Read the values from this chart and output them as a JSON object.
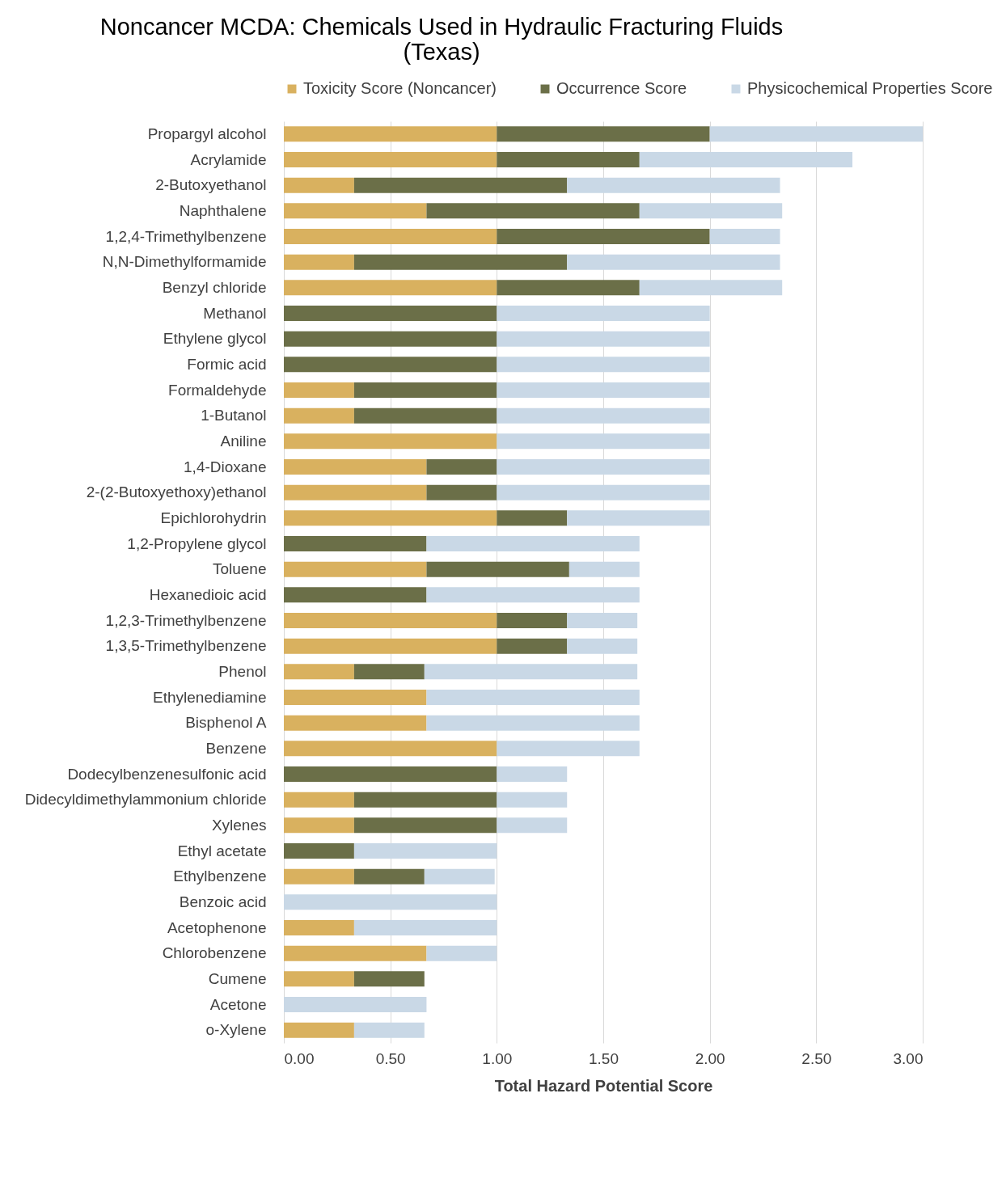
{
  "chart_data": {
    "type": "bar",
    "orientation": "horizontal",
    "stacked": true,
    "title": "Noncancer MCDA: Chemicals Used in Hydraulic Fracturing Fluids (Texas)",
    "xlabel": "Total Hazard Potential Score",
    "legend": "top",
    "grid": "x",
    "xlim": [
      0,
      3
    ],
    "xticks": [
      {
        "value": 0,
        "label": "0.00"
      },
      {
        "value": 0.5,
        "label": "0.50"
      },
      {
        "value": 1,
        "label": "1.00"
      },
      {
        "value": 1.5,
        "label": "1.50"
      },
      {
        "value": 2,
        "label": "2.00"
      },
      {
        "value": 2.5,
        "label": "2.50"
      },
      {
        "value": 3,
        "label": "3.00"
      }
    ],
    "categories": [
      "Propargyl alcohol",
      "Acrylamide",
      "2-Butoxyethanol",
      "Naphthalene",
      "1,2,4-Trimethylbenzene",
      "N,N-Dimethylformamide",
      "Benzyl chloride",
      "Methanol",
      "Ethylene glycol",
      "Formic acid",
      "Formaldehyde",
      "1-Butanol",
      "Aniline",
      "1,4-Dioxane",
      "2-(2-Butoxyethoxy)ethanol",
      "Epichlorohydrin",
      "1,2-Propylene glycol",
      "Toluene",
      "Hexanedioic acid",
      "1,2,3-Trimethylbenzene",
      "1,3,5-Trimethylbenzene",
      "Phenol",
      "Ethylenediamine",
      "Bisphenol A",
      "Benzene",
      "Dodecylbenzenesulfonic acid",
      "Didecyldimethylammonium chloride",
      "Xylenes",
      "Ethyl acetate",
      "Ethylbenzene",
      "Benzoic acid",
      "Acetophenone",
      "Chlorobenzene",
      "Cumene",
      "Acetone",
      "o-Xylene"
    ],
    "series": [
      {
        "name": "Toxicity Score (Noncancer)",
        "color": "#d9b15f",
        "values": [
          1,
          1,
          0.33,
          0.67,
          1,
          0.33,
          1,
          0,
          0,
          0,
          0.33,
          0.33,
          1,
          0.67,
          0.67,
          1,
          0,
          0.67,
          0,
          1,
          1,
          0.33,
          0.67,
          0.67,
          1,
          0,
          0.33,
          0.33,
          0,
          0.33,
          0,
          0.33,
          0.67,
          0.33,
          0,
          0.33
        ]
      },
      {
        "name": "Occurrence Score",
        "color": "#6b6f48",
        "values": [
          1,
          0.67,
          1,
          1,
          1,
          1,
          0.67,
          1,
          1,
          1,
          0.67,
          0.67,
          0,
          0.33,
          0.33,
          0.33,
          0.67,
          0.67,
          0.67,
          0.33,
          0.33,
          0.33,
          0,
          0,
          0,
          1,
          0.67,
          0.67,
          0.33,
          0.33,
          0,
          0,
          0,
          0.33,
          0,
          0
        ]
      },
      {
        "name": "Physicochemical Properties Score",
        "color": "#c9d8e6",
        "values": [
          1,
          1,
          1,
          0.67,
          0.33,
          1,
          0.67,
          1,
          1,
          1,
          1,
          1,
          1,
          1,
          1,
          0.67,
          1,
          0.33,
          1,
          0.33,
          0.33,
          1,
          1,
          1,
          0.67,
          0.33,
          0.33,
          0.33,
          0.67,
          0.33,
          1,
          0.67,
          0.33,
          0,
          0.67,
          0.33
        ]
      }
    ]
  }
}
